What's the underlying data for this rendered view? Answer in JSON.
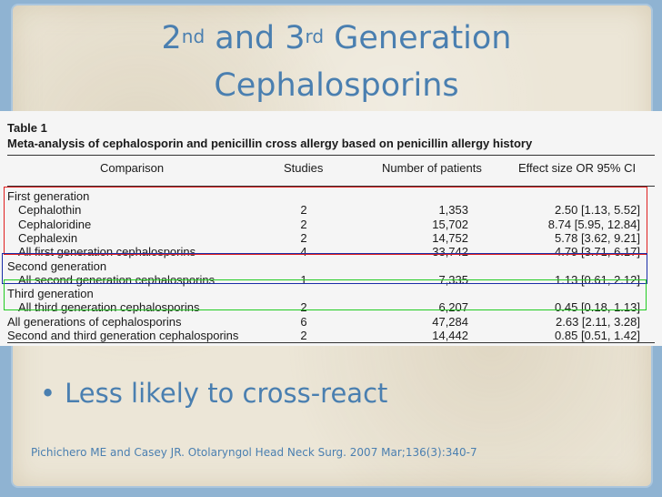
{
  "slide": {
    "title_line1_parts": [
      "2",
      "nd",
      " and 3",
      "rd",
      " Generation"
    ],
    "title_line2": "Cephalosporins",
    "bullet": "Less likely to cross-react",
    "bullet_marker": "•",
    "citation": "Pichichero ME and Casey JR.  Otolaryngol Head Neck Surg. 2007 Mar;136(3):340-7"
  },
  "table": {
    "label": "Table 1",
    "caption": "Meta-analysis of cephalosporin and penicillin cross allergy based on penicillin allergy history",
    "headers": [
      "Comparison",
      "Studies",
      "Number of patients",
      "Effect size OR 95% CI"
    ],
    "rows": [
      {
        "name": "First generation",
        "studies": "",
        "patients": "",
        "effect": ""
      },
      {
        "name": "Cephalothin",
        "studies": "2",
        "patients": "1,353",
        "effect": "2.50 [1.13, 5.52]"
      },
      {
        "name": "Cephaloridine",
        "studies": "2",
        "patients": "15,702",
        "effect": "8.74 [5.95, 12.84]"
      },
      {
        "name": "Cephalexin",
        "studies": "2",
        "patients": "14,752",
        "effect": "5.78 [3.62, 9.21]"
      },
      {
        "name": "All first generation cephalosporins",
        "studies": "4",
        "patients": "33,742",
        "effect": "4.79 [3.71, 6.17]"
      },
      {
        "name": "Second generation",
        "studies": "",
        "patients": "",
        "effect": ""
      },
      {
        "name": "All second generation cephalosporins",
        "studies": "1",
        "patients": "7,335",
        "effect": "1.13 [0.61, 2.12]"
      },
      {
        "name": "Third generation",
        "studies": "",
        "patients": "",
        "effect": ""
      },
      {
        "name": "All third generation cephalosporins",
        "studies": "2",
        "patients": "6,207",
        "effect": "0.45 [0.18, 1.13]"
      },
      {
        "name": "All generations of cephalosporins",
        "studies": "6",
        "patients": "47,284",
        "effect": "2.63 [2.11, 3.28]"
      },
      {
        "name": "Second and third generation cephalosporins",
        "studies": "2",
        "patients": "14,442",
        "effect": "0.85 [0.51, 1.42]"
      }
    ]
  },
  "highlight_colors": {
    "first": "#e02020",
    "second": "#1a2ea8",
    "third": "#22cc22"
  }
}
